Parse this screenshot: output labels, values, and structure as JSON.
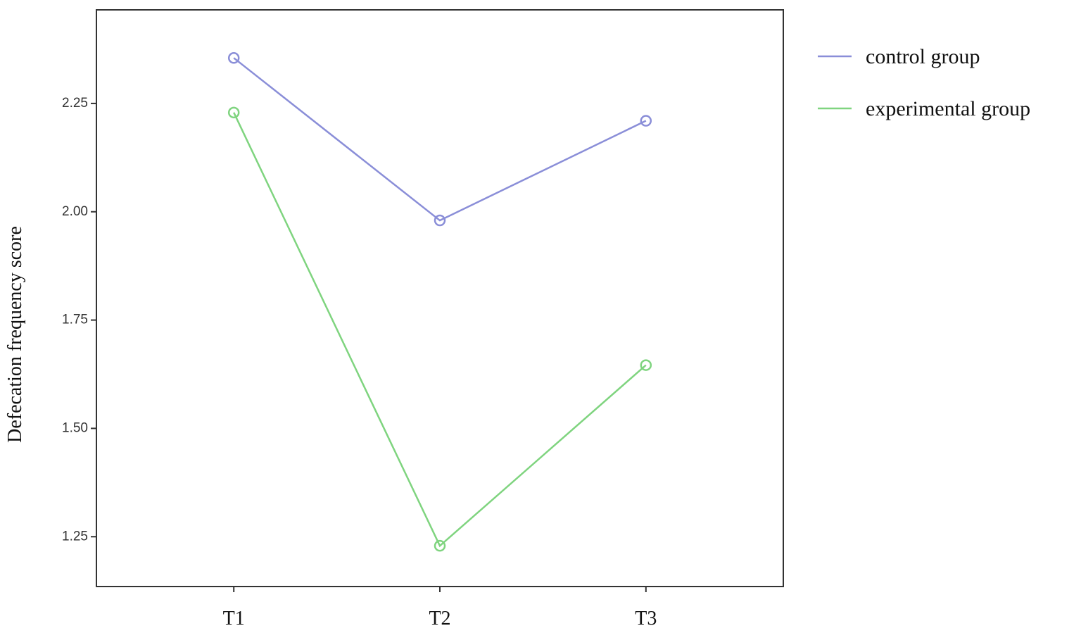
{
  "chart_data": {
    "type": "line",
    "y_label": "Defecation frequency score",
    "categories": [
      "T1",
      "T2",
      "T3"
    ],
    "series": [
      {
        "name": "control group",
        "color": "#8a8ed8",
        "values": [
          2.355,
          1.98,
          2.21
        ]
      },
      {
        "name": "experimental group",
        "color": "#7fd47f",
        "values": [
          2.229,
          1.229,
          1.646
        ]
      }
    ],
    "ylim": [
      1.135,
      2.466
    ],
    "yticks": [
      1.25,
      {
        "value": 1.5,
        "label": "1.50"
      },
      1.75,
      {
        "value": 2,
        "label": "2.00"
      },
      2.25
    ]
  }
}
